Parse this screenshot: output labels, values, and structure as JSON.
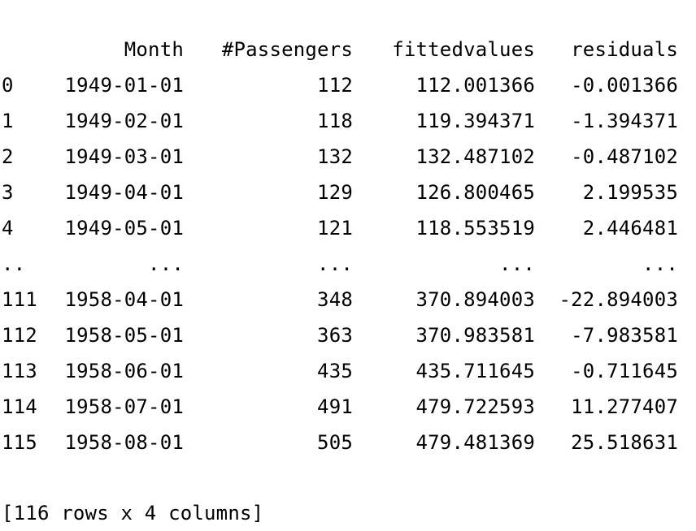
{
  "dataframe": {
    "headers": {
      "month": "Month",
      "passengers": "#Passengers",
      "fittedvalues": "fittedvalues",
      "residuals": "residuals"
    },
    "rows": [
      {
        "index": "0",
        "month": "1949-01-01",
        "passengers": "112",
        "fittedvalues": "112.001366",
        "residuals": "-0.001366"
      },
      {
        "index": "1",
        "month": "1949-02-01",
        "passengers": "118",
        "fittedvalues": "119.394371",
        "residuals": "-1.394371"
      },
      {
        "index": "2",
        "month": "1949-03-01",
        "passengers": "132",
        "fittedvalues": "132.487102",
        "residuals": "-0.487102"
      },
      {
        "index": "3",
        "month": "1949-04-01",
        "passengers": "129",
        "fittedvalues": "126.800465",
        "residuals": "2.199535"
      },
      {
        "index": "4",
        "month": "1949-05-01",
        "passengers": "121",
        "fittedvalues": "118.553519",
        "residuals": "2.446481"
      },
      {
        "index": "..",
        "month": "...",
        "passengers": "...",
        "fittedvalues": "...",
        "residuals": "..."
      },
      {
        "index": "111",
        "month": "1958-04-01",
        "passengers": "348",
        "fittedvalues": "370.894003",
        "residuals": "-22.894003"
      },
      {
        "index": "112",
        "month": "1958-05-01",
        "passengers": "363",
        "fittedvalues": "370.983581",
        "residuals": "-7.983581"
      },
      {
        "index": "113",
        "month": "1958-06-01",
        "passengers": "435",
        "fittedvalues": "435.711645",
        "residuals": "-0.711645"
      },
      {
        "index": "114",
        "month": "1958-07-01",
        "passengers": "491",
        "fittedvalues": "479.722593",
        "residuals": "11.277407"
      },
      {
        "index": "115",
        "month": "1958-08-01",
        "passengers": "505",
        "fittedvalues": "479.481369",
        "residuals": "25.518631"
      }
    ],
    "summary": "[116 rows x 4 columns]"
  }
}
